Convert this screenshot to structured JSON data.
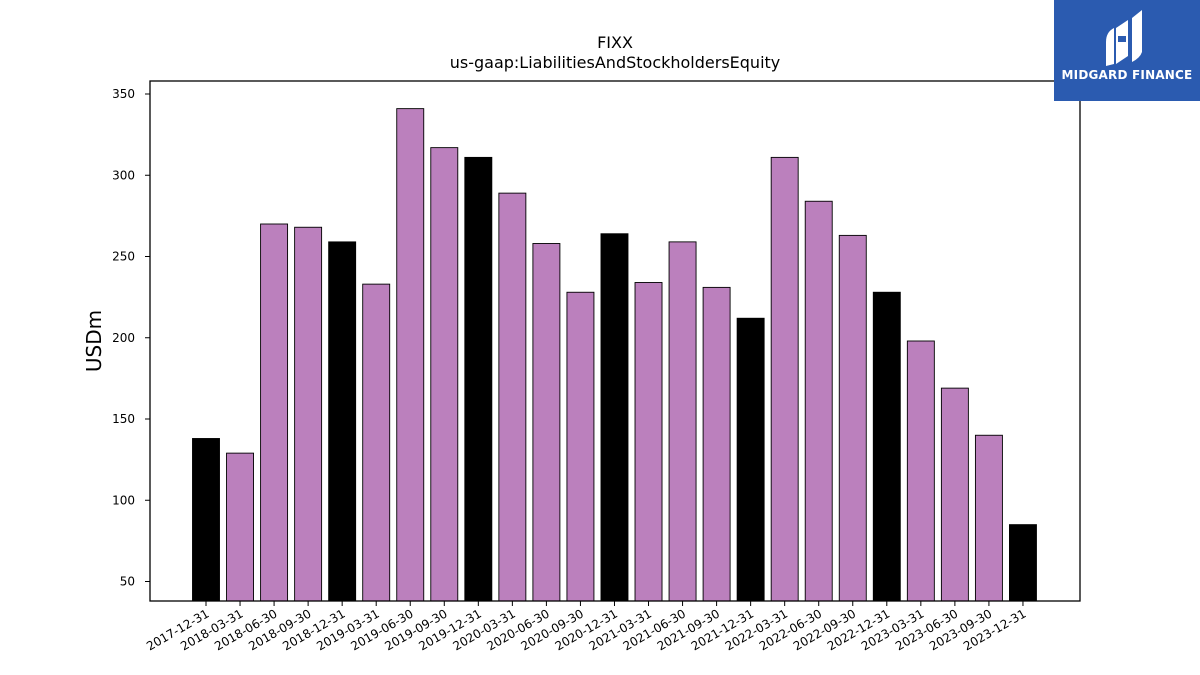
{
  "chart_data": {
    "type": "bar",
    "title": "FIXX",
    "subtitle": "us-gaap:LiabilitiesAndStockholdersEquity",
    "ylabel": "USDm",
    "xlabel": "",
    "ylim": [
      38,
      358
    ],
    "yticks": [
      50,
      100,
      150,
      200,
      250,
      300,
      350
    ],
    "grid": false,
    "legend": "none",
    "colors": {
      "annual": "#000000",
      "quarterly": "#bb80bd",
      "edge": "#000000"
    },
    "categories": [
      "2017-12-31",
      "2018-03-31",
      "2018-06-30",
      "2018-09-30",
      "2018-12-31",
      "2019-03-31",
      "2019-06-30",
      "2019-09-30",
      "2019-12-31",
      "2020-03-31",
      "2020-06-30",
      "2020-09-30",
      "2020-12-31",
      "2021-03-31",
      "2021-06-30",
      "2021-09-30",
      "2021-12-31",
      "2022-03-31",
      "2022-06-30",
      "2022-09-30",
      "2022-12-31",
      "2023-03-31",
      "2023-06-30",
      "2023-09-30",
      "2023-12-31"
    ],
    "values": [
      138,
      129,
      270,
      268,
      259,
      233,
      341,
      317,
      311,
      289,
      258,
      228,
      264,
      234,
      259,
      231,
      212,
      311,
      284,
      263,
      228,
      198,
      169,
      140,
      85
    ],
    "bar_kind": [
      "annual",
      "quarterly",
      "quarterly",
      "quarterly",
      "annual",
      "quarterly",
      "quarterly",
      "quarterly",
      "annual",
      "quarterly",
      "quarterly",
      "quarterly",
      "annual",
      "quarterly",
      "quarterly",
      "quarterly",
      "annual",
      "quarterly",
      "quarterly",
      "quarterly",
      "annual",
      "quarterly",
      "quarterly",
      "quarterly",
      "annual"
    ]
  },
  "logo": {
    "text": "MIDGARD FINANCE",
    "icon": "midgard-finance-logo-icon",
    "background": "#2b5bb0"
  }
}
